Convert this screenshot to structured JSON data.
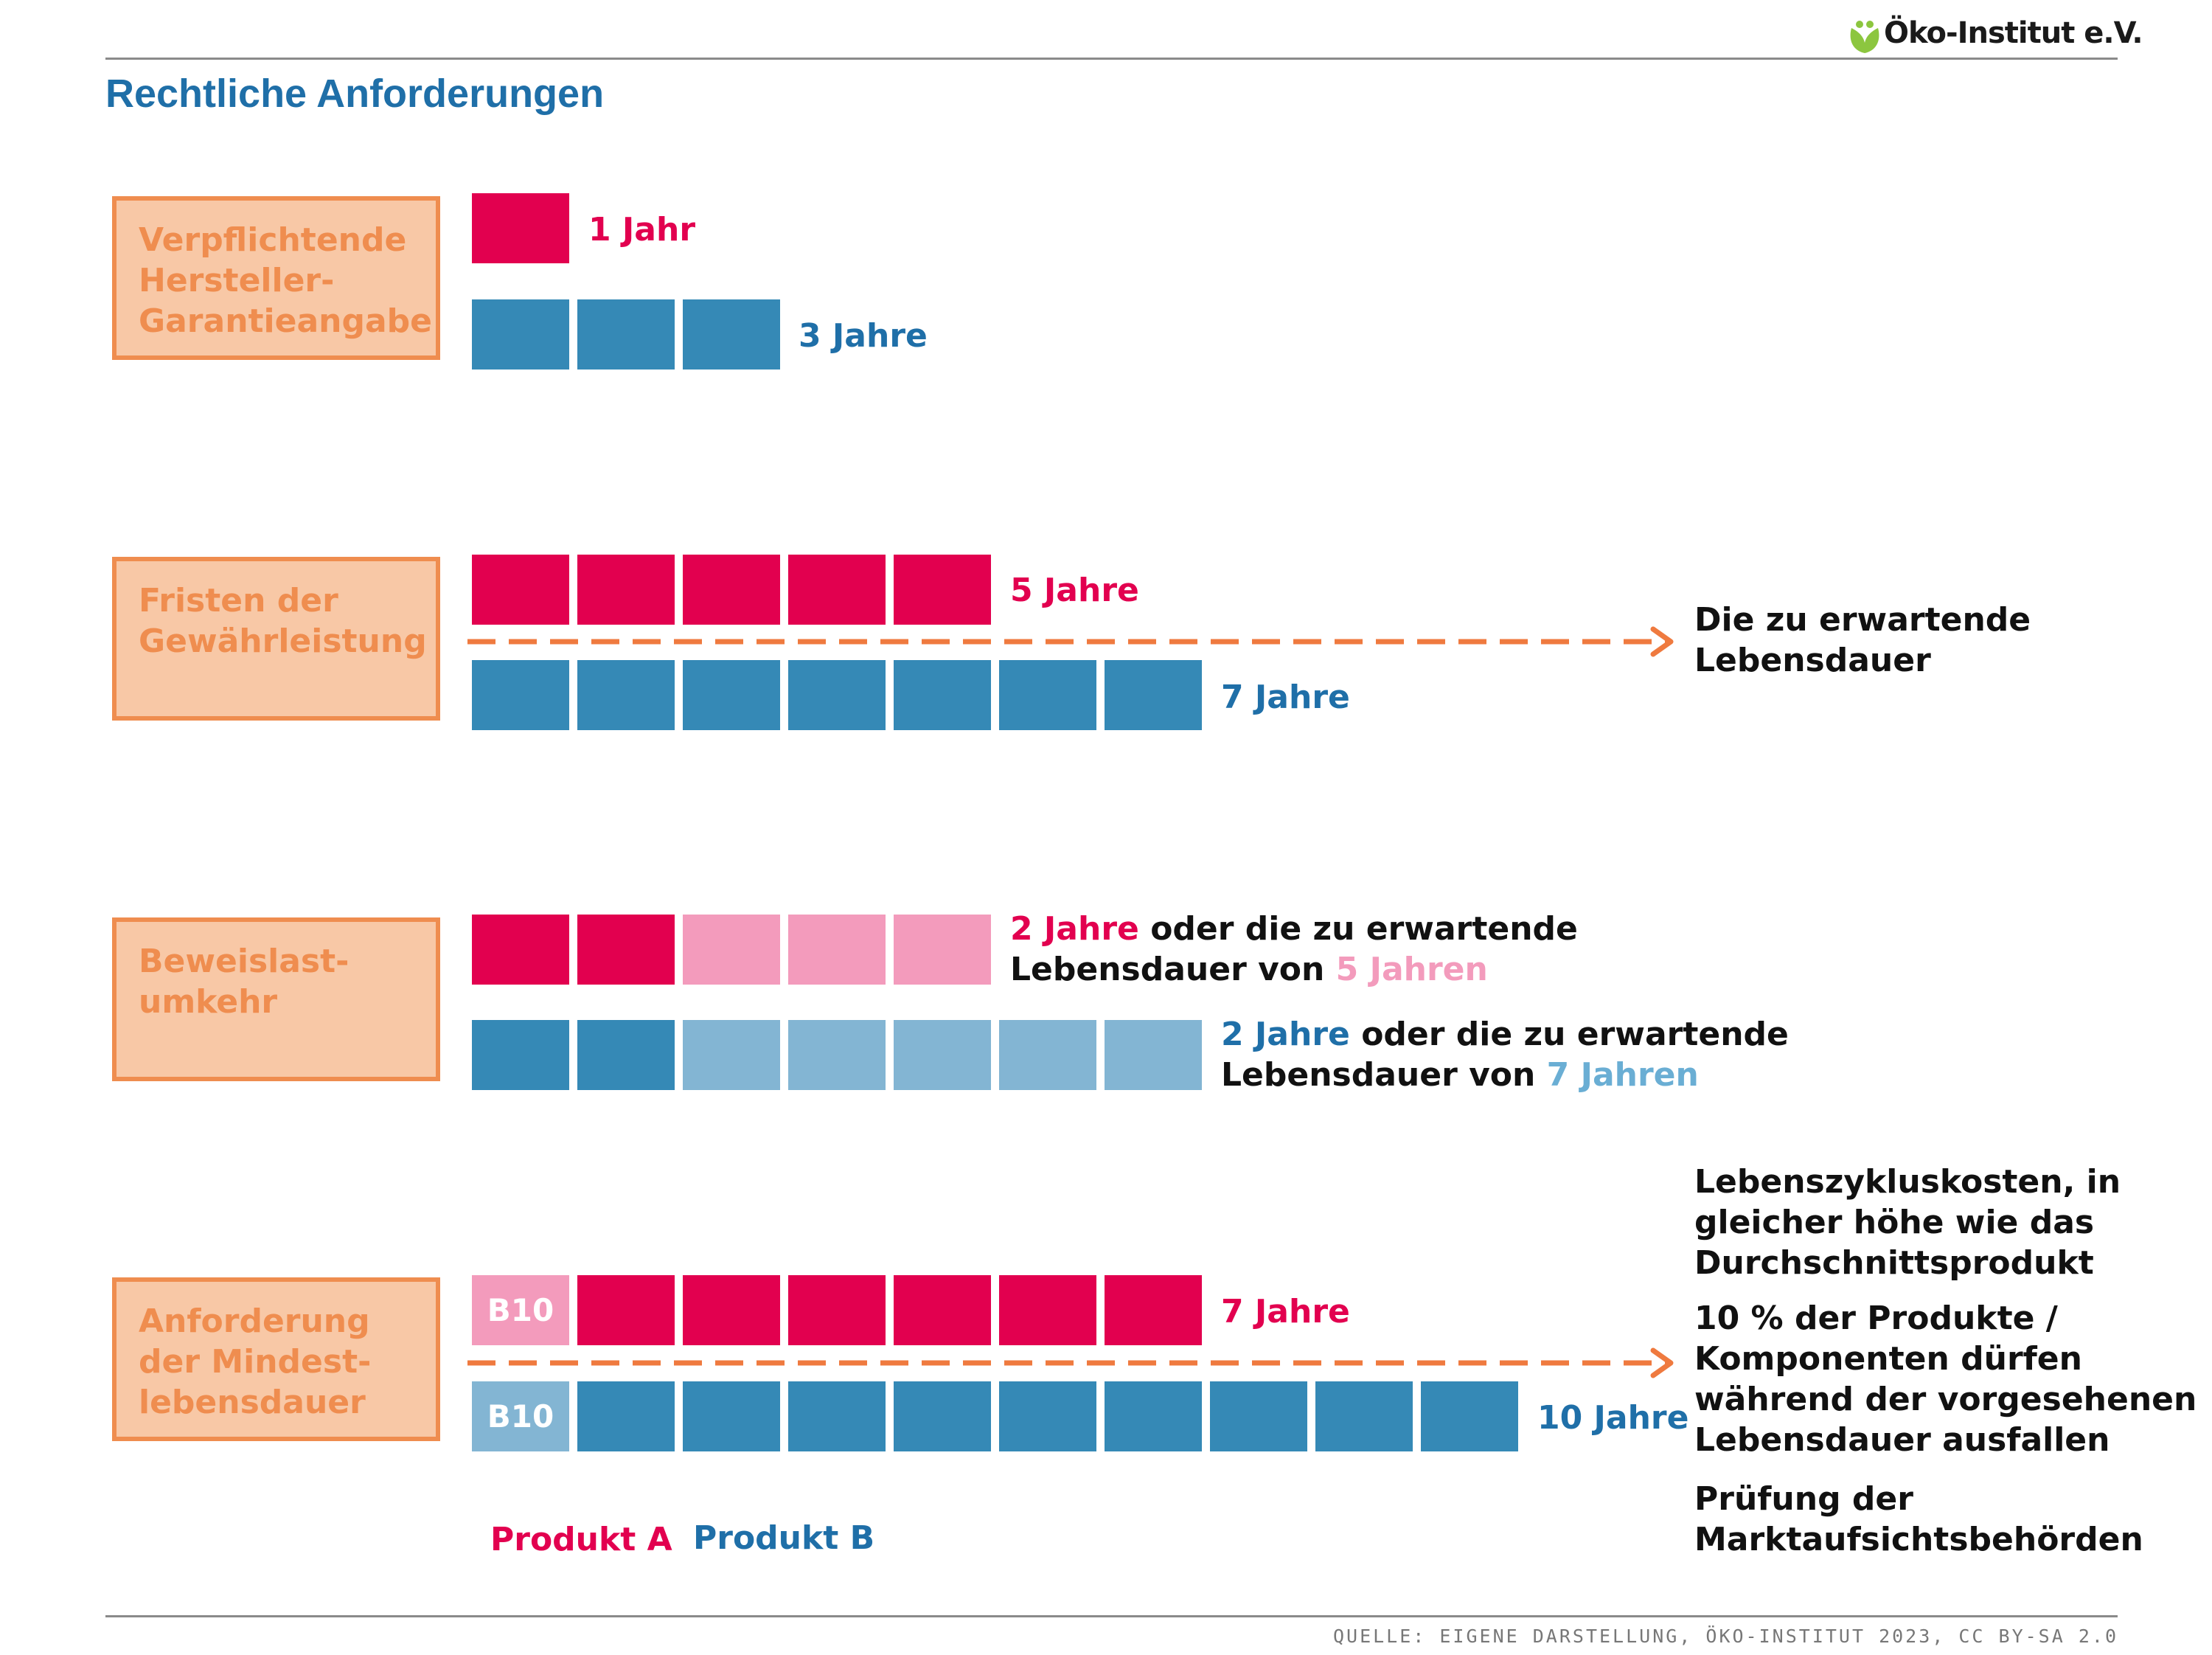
{
  "header": {
    "logo_text": "Öko-Institut e.V.",
    "title": "Rechtliche Anforderungen"
  },
  "colors": {
    "produkt_a": "#e2004f",
    "produkt_a_light": "#f39bbc",
    "produkt_b": "#3589b6",
    "produkt_b_light": "#83b5d3",
    "category_fill": "#f8c8a6",
    "category_border": "#ef8d4f",
    "arrow": "#ef7a3f",
    "title": "#1f6fa8"
  },
  "rows": [
    {
      "category": "Verpflichtende\nHersteller-\nGarantieangabe",
      "a_label": "1 Jahr",
      "b_label": "3 Jahre",
      "a_years": 1,
      "b_years": 3
    },
    {
      "category": "Fristen der\nGewährleistung",
      "a_label": "5 Jahre",
      "b_label": "7 Jahre",
      "a_years": 5,
      "b_years": 7,
      "arrow_note": "Die zu erwartende\nLebensdauer"
    },
    {
      "category": "Beweislast-\numkehr",
      "a_years_dark": 2,
      "a_years_light": 3,
      "b_years_dark": 2,
      "b_years_light": 5,
      "a_text": {
        "part1": "2 Jahre",
        "part2": " oder die zu erwartende",
        "part3": "Lebensdauer von ",
        "part4": "5 Jahren"
      },
      "b_text": {
        "part1": "2 Jahre",
        "part2": " oder die zu erwartende",
        "part3": "Lebensdauer von ",
        "part4": "7 Jahren"
      }
    },
    {
      "category": "Anforderung\nder Mindest-\nlebensdauer",
      "a_label": "7 Jahre",
      "b_label": "10 Jahre",
      "a_years": 7,
      "b_years": 10,
      "b10_label": "B10",
      "notes": [
        "Lebenszykluskosten, in\ngleicher höhe wie das\nDurchschnittsprodukt",
        "10 % der Produkte /\nKomponenten dürfen\nwährend der vorgesehenen\nLebensdauer ausfallen",
        "Prüfung der\nMarktaufsichtsbehörden"
      ]
    }
  ],
  "legend": {
    "produkt_a": "Produkt A",
    "produkt_b": "Produkt B"
  },
  "footer": {
    "source": "QUELLE: EIGENE DARSTELLUNG, ÖKO-INSTITUT 2023, CC BY-SA 2.0"
  }
}
